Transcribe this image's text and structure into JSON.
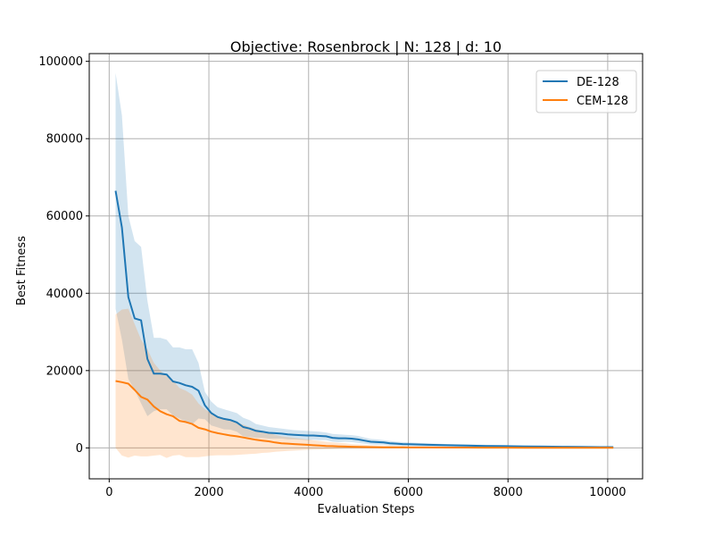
{
  "chart_data": {
    "type": "line",
    "title": "Objective: Rosenbrock | N: 128 | d: 10",
    "xlabel": "Evaluation Steps",
    "ylabel": "Best Fitness",
    "xlim": [
      -400,
      10700
    ],
    "ylim": [
      -8000,
      102000
    ],
    "xticks": [
      0,
      2000,
      4000,
      6000,
      8000,
      10000
    ],
    "yticks": [
      0,
      20000,
      40000,
      60000,
      80000,
      100000
    ],
    "xtick_labels": [
      "0",
      "2000",
      "4000",
      "6000",
      "8000",
      "10000"
    ],
    "ytick_labels": [
      "0",
      "20000",
      "40000",
      "60000",
      "80000",
      "100000"
    ],
    "grid": true,
    "legend_position": "top-right",
    "x": [
      128,
      256,
      384,
      512,
      640,
      768,
      896,
      1024,
      1152,
      1280,
      1408,
      1536,
      1664,
      1792,
      1920,
      2048,
      2176,
      2304,
      2432,
      2560,
      2688,
      2816,
      2944,
      3072,
      3200,
      3328,
      3456,
      3584,
      3712,
      3840,
      3968,
      4096,
      4224,
      4352,
      4480,
      4608,
      4736,
      4864,
      4992,
      5120,
      5248,
      5376,
      5504,
      5632,
      5760,
      5888,
      6016,
      6400,
      6784,
      7168,
      7552,
      7936,
      8320,
      8704,
      9088,
      9472,
      9856,
      10112
    ],
    "series": [
      {
        "name": "DE-128",
        "color": "#1f77b4",
        "band_color": "#1f77b4",
        "mean": [
          66500,
          57000,
          39000,
          33500,
          33000,
          23000,
          19200,
          19200,
          19000,
          17200,
          16800,
          16200,
          15800,
          14800,
          11000,
          9000,
          8000,
          7500,
          7200,
          6600,
          5400,
          5000,
          4400,
          4200,
          3900,
          3800,
          3700,
          3500,
          3400,
          3300,
          3200,
          3200,
          3100,
          3000,
          2600,
          2500,
          2500,
          2400,
          2200,
          1900,
          1600,
          1500,
          1400,
          1200,
          1100,
          1000,
          950,
          800,
          700,
          600,
          500,
          450,
          400,
          350,
          300,
          250,
          200,
          200
        ],
        "upper": [
          97000,
          86000,
          60000,
          53500,
          52000,
          38000,
          28500,
          28500,
          28000,
          26000,
          26000,
          25500,
          25500,
          22000,
          14500,
          12000,
          10500,
          10000,
          9500,
          9000,
          7800,
          7200,
          6200,
          5800,
          5400,
          5200,
          5000,
          4800,
          4600,
          4500,
          4400,
          4300,
          4200,
          4000,
          3600,
          3500,
          3400,
          3300,
          3100,
          2700,
          2300,
          2200,
          2000,
          1800,
          1600,
          1500,
          1400,
          1200,
          1000,
          900,
          800,
          700,
          600,
          500,
          450,
          380,
          320,
          300
        ],
        "lower": [
          36000,
          28000,
          17800,
          15000,
          11500,
          8200,
          9500,
          10000,
          10000,
          8400,
          7600,
          6900,
          6100,
          7600,
          7400,
          5800,
          5300,
          4800,
          4700,
          4200,
          3000,
          2800,
          2600,
          2600,
          2400,
          2400,
          2400,
          2200,
          2200,
          2100,
          2000,
          2100,
          2000,
          2000,
          1600,
          1500,
          1600,
          1500,
          1300,
          1100,
          900,
          800,
          800,
          600,
          600,
          500,
          500,
          400,
          400,
          300,
          200,
          200,
          200,
          200,
          150,
          120,
          80,
          100
        ]
      },
      {
        "name": "CEM-128",
        "color": "#ff7f0e",
        "band_color": "#ff7f0e",
        "mean": [
          17300,
          17000,
          16600,
          15000,
          13200,
          12500,
          10700,
          9500,
          8700,
          8200,
          7000,
          6700,
          6200,
          5200,
          4800,
          4200,
          3800,
          3500,
          3200,
          3000,
          2700,
          2400,
          2100,
          1900,
          1700,
          1400,
          1200,
          1100,
          1000,
          900,
          800,
          700,
          600,
          500,
          450,
          400,
          350,
          300,
          250,
          220,
          200,
          180,
          160,
          150,
          140,
          130,
          120,
          100,
          90,
          80,
          70,
          60,
          50,
          40,
          35,
          30,
          25,
          20
        ],
        "upper": [
          34500,
          35800,
          36000,
          32000,
          28000,
          25500,
          22000,
          20000,
          18500,
          17500,
          15500,
          14800,
          13800,
          11500,
          10000,
          9000,
          8200,
          7600,
          7000,
          6600,
          6000,
          5400,
          4800,
          4400,
          4000,
          3400,
          3000,
          2800,
          2600,
          2400,
          2200,
          2000,
          1800,
          1600,
          1400,
          1300,
          1200,
          1000,
          900,
          800,
          700,
          650,
          600,
          550,
          500,
          450,
          420,
          380,
          340,
          300,
          260,
          220,
          180,
          150,
          130,
          110,
          90,
          80
        ],
        "lower": [
          0,
          -2000,
          -2500,
          -2000,
          -2200,
          -2200,
          -2000,
          -1800,
          -2600,
          -2000,
          -1800,
          -2400,
          -2400,
          -2400,
          -2200,
          -2000,
          -1900,
          -1900,
          -1900,
          -1800,
          -1700,
          -1600,
          -1500,
          -1300,
          -1200,
          -1000,
          -900,
          -800,
          -700,
          -600,
          -500,
          -450,
          -400,
          -350,
          -300,
          -250,
          -200,
          -180,
          -160,
          -140,
          -120,
          -100,
          -90,
          -80,
          -70,
          -60,
          -50,
          -40,
          -35,
          -30,
          -25,
          -20,
          -15,
          -10,
          -8,
          -6,
          -5,
          -4
        ]
      }
    ]
  }
}
